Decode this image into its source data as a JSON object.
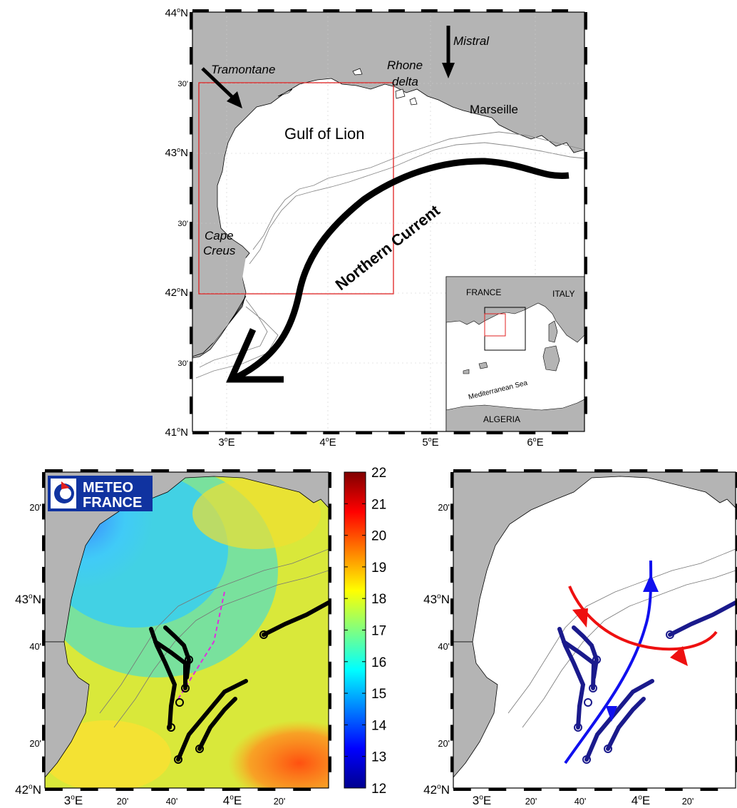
{
  "top_map": {
    "lat_labels": [
      "44°N",
      "30'",
      "43°N",
      "30'",
      "42°N",
      "30'",
      "41°N"
    ],
    "lon_labels": [
      "3°E",
      "4°E",
      "5°E",
      "6°E"
    ],
    "places": {
      "gulf": "Gulf of Lion",
      "marseille": "Marseille",
      "rhone1": "Rhone",
      "rhone2": "delta",
      "cape1": "Cape",
      "cape2": "Creus"
    },
    "winds": {
      "tramontane": "Tramontane",
      "mistral": "Mistral"
    },
    "current": "Northern Current",
    "inset": {
      "france": "FRANCE",
      "italy": "ITALY",
      "sea": "Mediterranean Sea",
      "algeria": "ALGERIA"
    }
  },
  "bottom_left": {
    "logo1": "METEO",
    "logo2": "FRANCE",
    "lat_labels": [
      "20'",
      "43°N",
      "40'",
      "20'",
      "42°N"
    ],
    "lon_labels": [
      "3°E",
      "20'",
      "40'",
      "4°E",
      "20'"
    ],
    "colorbar_ticks": [
      "22",
      "21",
      "20",
      "19",
      "18",
      "17",
      "16",
      "15",
      "14",
      "13",
      "12"
    ]
  },
  "bottom_right": {
    "lat_labels": [
      "20'",
      "43°N",
      "40'",
      "20'",
      "42°N"
    ],
    "lon_labels": [
      "3°E",
      "20'",
      "40'",
      "4°E",
      "20'"
    ]
  },
  "colors": {
    "land": "#b4b4b4",
    "frame": "#000000",
    "box": "#e02020",
    "tracks_dark": "#000000",
    "tracks_blue": "#1a1a8c",
    "arrow_blue": "#1010ee",
    "arrow_red": "#ee1010"
  }
}
